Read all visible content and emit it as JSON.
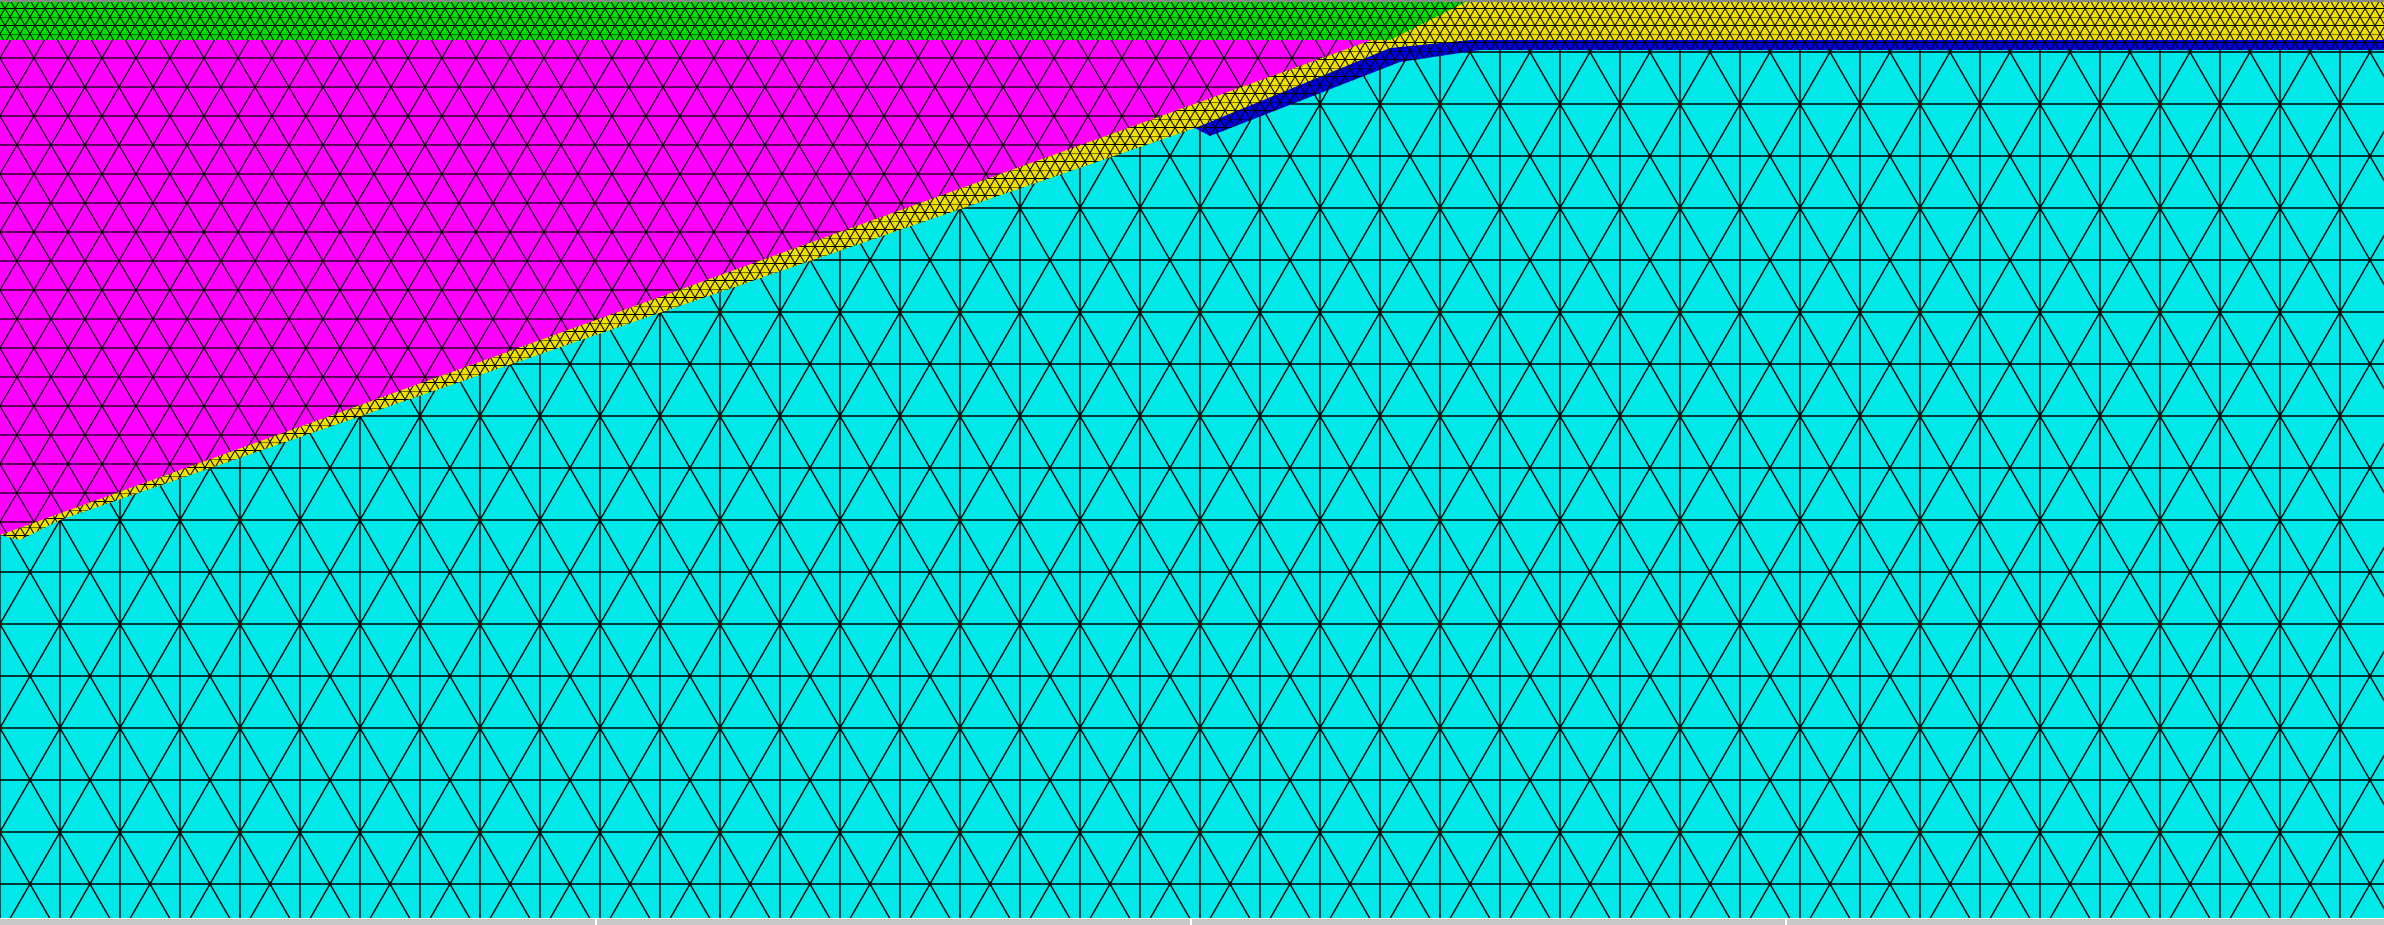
{
  "view": {
    "type": "finite-element-mesh",
    "element_shape": "triangle",
    "colors": {
      "green_layer": "#00e000",
      "magenta_layer": "#ff00ff",
      "yellow_layer": "#f0e000",
      "blue_layer": "#0000e8",
      "cyan_layer": "#00e8e8",
      "mesh_lines": "#000000",
      "frame": "#c8c8c8"
    },
    "regions": [
      "green_layer",
      "magenta_layer",
      "yellow_layer",
      "blue_layer",
      "cyan_layer"
    ]
  }
}
